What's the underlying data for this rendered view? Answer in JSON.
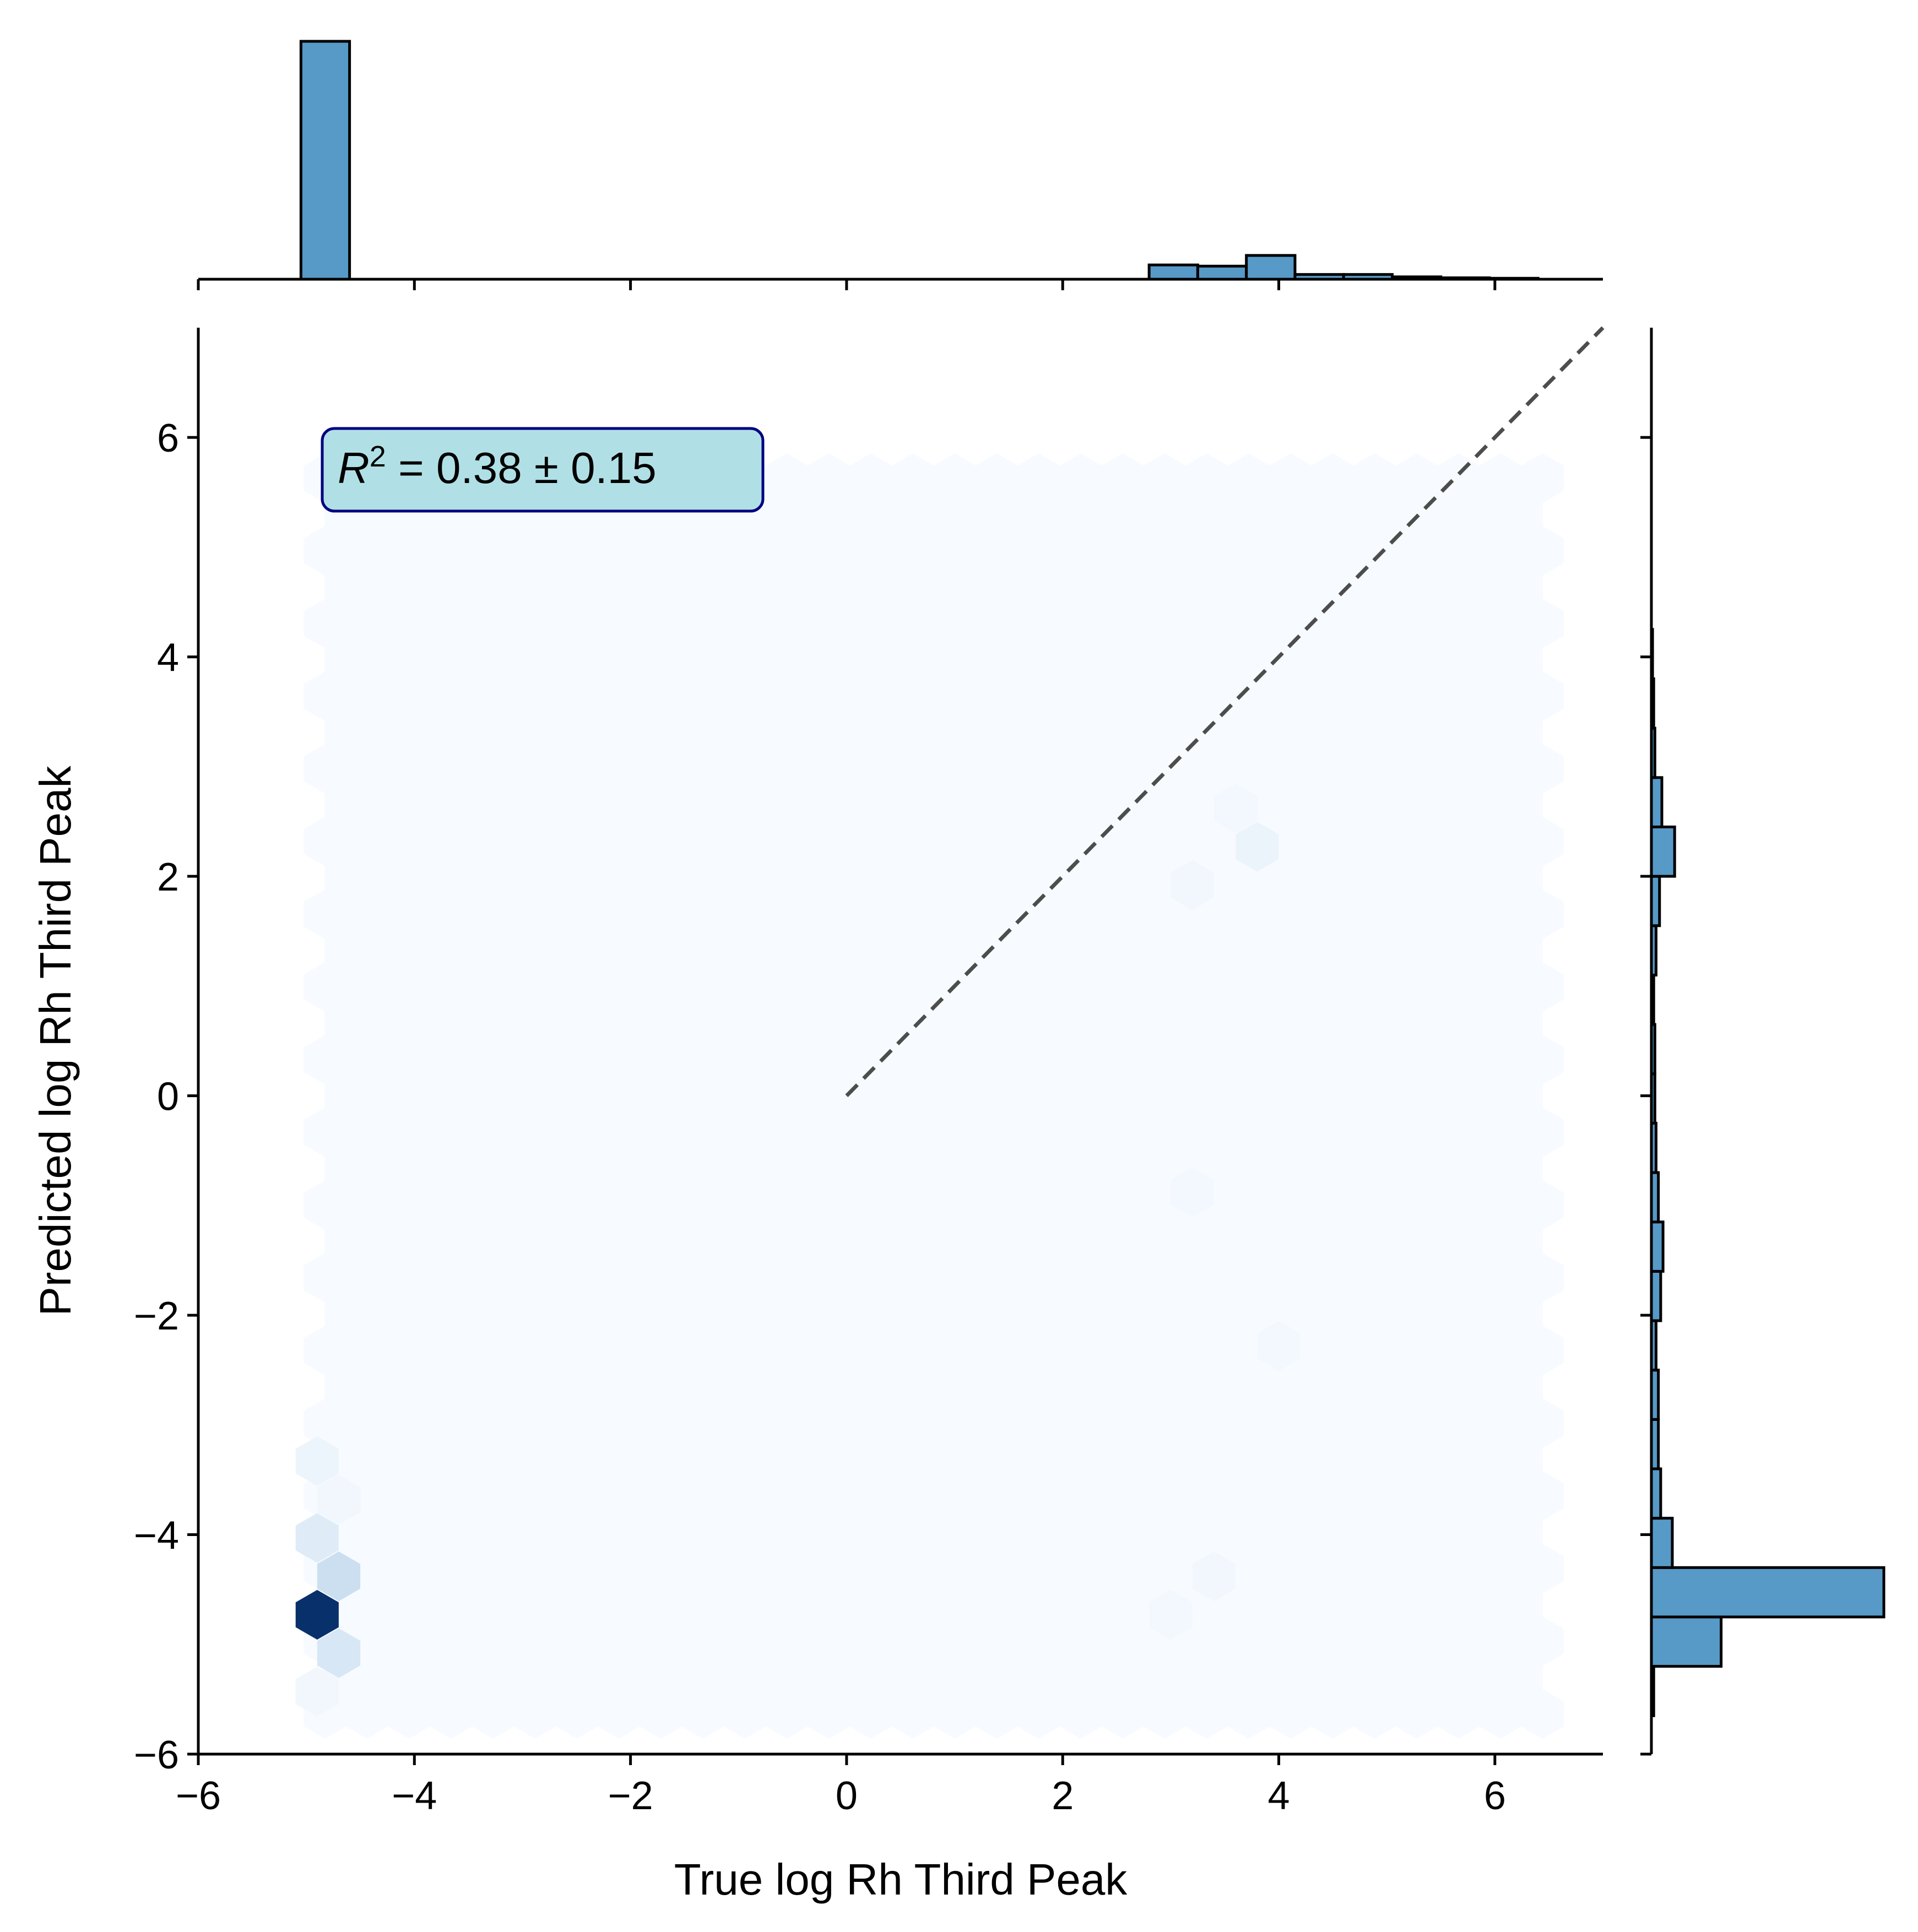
{
  "chart_data": {
    "type": "hexbin",
    "xlabel": "True log Rh Third Peak",
    "ylabel": "Predicted log Rh Third Peak",
    "xlim": [
      -6,
      7
    ],
    "ylim": [
      -6,
      7
    ],
    "xticks": [
      -6,
      -4,
      -2,
      0,
      2,
      4,
      6
    ],
    "yticks": [
      -6,
      -4,
      -2,
      0,
      2,
      4,
      6
    ],
    "xtick_labels": [
      "−6",
      "−4",
      "−2",
      "0",
      "2",
      "4",
      "6"
    ],
    "ytick_labels": [
      "−6",
      "−4",
      "−2",
      "0",
      "2",
      "4",
      "6"
    ],
    "annotation": {
      "symbol": "R",
      "superscript": "2",
      "text": " = 0.38 ± 0.15",
      "fill": "#b0e0e6",
      "edge": "#000080"
    },
    "identity_line": {
      "x": [
        0,
        7
      ],
      "y": [
        0,
        7
      ],
      "color": "#4d4d4d",
      "style": "dashed"
    },
    "hexbin": {
      "colormap": "Blues",
      "extent": {
        "x": [
          -5.0,
          6.5
        ],
        "y": [
          -5.8,
          5.8
        ]
      },
      "background_color": "#f7fbff",
      "cells": [
        {
          "x": -4.9,
          "y": -4.73,
          "density": 1.0
        },
        {
          "x": -4.7,
          "y": -4.38,
          "density": 0.22
        },
        {
          "x": -4.7,
          "y": -5.08,
          "density": 0.16
        },
        {
          "x": -4.9,
          "y": -4.03,
          "density": 0.12
        },
        {
          "x": -4.9,
          "y": -3.33,
          "density": 0.05
        },
        {
          "x": -4.7,
          "y": -3.68,
          "density": 0.03
        },
        {
          "x": -4.9,
          "y": -5.43,
          "density": 0.03
        },
        {
          "x": 3.8,
          "y": 2.27,
          "density": 0.06
        },
        {
          "x": 3.2,
          "y": 1.92,
          "density": 0.03
        },
        {
          "x": 3.6,
          "y": 2.62,
          "density": 0.025
        },
        {
          "x": 3.4,
          "y": -4.38,
          "density": 0.03
        },
        {
          "x": 3.0,
          "y": -4.73,
          "density": 0.025
        },
        {
          "x": 4.0,
          "y": -2.28,
          "density": 0.02
        },
        {
          "x": 3.2,
          "y": -0.88,
          "density": 0.02
        }
      ]
    },
    "marginal_x": {
      "color": "#5799c7",
      "bins": [
        {
          "x0": -5.05,
          "x1": -4.6,
          "value": 100
        },
        {
          "x0": 2.8,
          "x1": 3.25,
          "value": 6
        },
        {
          "x0": 3.25,
          "x1": 3.7,
          "value": 5.5
        },
        {
          "x0": 3.7,
          "x1": 4.15,
          "value": 10
        },
        {
          "x0": 4.15,
          "x1": 4.6,
          "value": 2
        },
        {
          "x0": 4.6,
          "x1": 5.05,
          "value": 2
        },
        {
          "x0": 5.05,
          "x1": 5.5,
          "value": 1
        },
        {
          "x0": 5.5,
          "x1": 5.95,
          "value": 0.6
        },
        {
          "x0": 5.95,
          "x1": 6.4,
          "value": 0.4
        }
      ]
    },
    "marginal_y": {
      "color": "#5799c7",
      "bins": [
        {
          "y0": -5.65,
          "y1": -5.2,
          "value": 1
        },
        {
          "y0": -5.2,
          "y1": -4.75,
          "value": 30
        },
        {
          "y0": -4.75,
          "y1": -4.3,
          "value": 100
        },
        {
          "y0": -4.3,
          "y1": -3.85,
          "value": 9
        },
        {
          "y0": -3.85,
          "y1": -3.4,
          "value": 4
        },
        {
          "y0": -3.4,
          "y1": -2.95,
          "value": 3
        },
        {
          "y0": -2.95,
          "y1": -2.5,
          "value": 3
        },
        {
          "y0": -2.5,
          "y1": -2.05,
          "value": 2
        },
        {
          "y0": -2.05,
          "y1": -1.6,
          "value": 4
        },
        {
          "y0": -1.6,
          "y1": -1.15,
          "value": 5
        },
        {
          "y0": -1.15,
          "y1": -0.7,
          "value": 3
        },
        {
          "y0": -0.7,
          "y1": -0.25,
          "value": 2
        },
        {
          "y0": -0.25,
          "y1": 0.2,
          "value": 1.5
        },
        {
          "y0": 0.2,
          "y1": 0.65,
          "value": 1.5
        },
        {
          "y0": 0.65,
          "y1": 1.1,
          "value": 1
        },
        {
          "y0": 1.1,
          "y1": 1.55,
          "value": 2
        },
        {
          "y0": 1.55,
          "y1": 2.0,
          "value": 3.5
        },
        {
          "y0": 2.0,
          "y1": 2.45,
          "value": 10
        },
        {
          "y0": 2.45,
          "y1": 2.9,
          "value": 4.5
        },
        {
          "y0": 2.9,
          "y1": 3.35,
          "value": 1.5
        },
        {
          "y0": 3.35,
          "y1": 3.8,
          "value": 1
        },
        {
          "y0": 3.8,
          "y1": 4.25,
          "value": 0.5
        }
      ]
    }
  }
}
